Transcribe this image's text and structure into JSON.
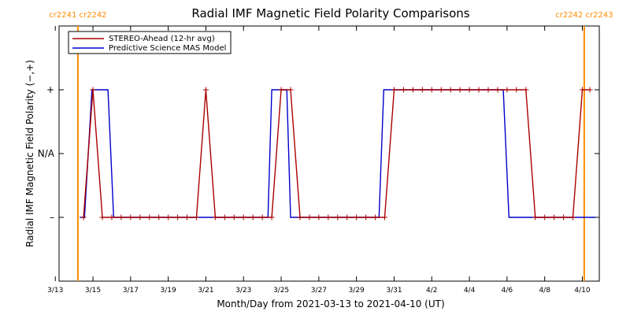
{
  "chart_data": {
    "type": "line",
    "title": "Radial IMF Magnetic Field Polarity Comparisons",
    "xlabel": "Month/Day from 2021-03-13 to 2021-04-10 (UT)",
    "ylabel": "Radial IMF Magnetic Field Polarity (−,+)",
    "x_range_days": [
      0,
      28.7
    ],
    "y_levels": [
      {
        "label": "+",
        "value": 1
      },
      {
        "label": "N/A",
        "value": 0
      },
      {
        "label": "–",
        "value": -1
      }
    ],
    "ylim": [
      -2,
      2
    ],
    "x_ticks": [
      {
        "label": "3/13",
        "day": 0
      },
      {
        "label": "3/15",
        "day": 2
      },
      {
        "label": "3/17",
        "day": 4
      },
      {
        "label": "3/19",
        "day": 6
      },
      {
        "label": "3/21",
        "day": 8
      },
      {
        "label": "3/23",
        "day": 10
      },
      {
        "label": "3/25",
        "day": 12
      },
      {
        "label": "3/27",
        "day": 14
      },
      {
        "label": "3/29",
        "day": 16
      },
      {
        "label": "3/31",
        "day": 18
      },
      {
        "label": "4/2",
        "day": 20
      },
      {
        "label": "4/4",
        "day": 22
      },
      {
        "label": "4/6",
        "day": 24
      },
      {
        "label": "4/8",
        "day": 26
      },
      {
        "label": "4/10",
        "day": 28
      }
    ],
    "carrington": [
      {
        "label": "cr2241 cr2242",
        "day": 1.2
      },
      {
        "label": "cr2242 cr2243",
        "day": 28.1
      }
    ],
    "legend": {
      "placement": "top-left",
      "entries": [
        {
          "name": "STEREO-Ahead (12-hr avg)",
          "color": "#aa0000"
        },
        {
          "name": "Predictive Science MAS Model",
          "color": "#0000cc"
        }
      ]
    },
    "series": [
      {
        "name": "STEREO-Ahead (12-hr avg)",
        "color": "#aa0000",
        "markers": true,
        "points": [
          [
            1.5,
            -1
          ],
          [
            2.0,
            1
          ],
          [
            2.5,
            -1
          ],
          [
            3.0,
            -1
          ],
          [
            3.5,
            -1
          ],
          [
            4.0,
            -1
          ],
          [
            4.5,
            -1
          ],
          [
            5.0,
            -1
          ],
          [
            5.5,
            -1
          ],
          [
            6.0,
            -1
          ],
          [
            6.5,
            -1
          ],
          [
            7.0,
            -1
          ],
          [
            7.5,
            -1
          ],
          [
            8.0,
            1
          ],
          [
            8.5,
            -1
          ],
          [
            9.0,
            -1
          ],
          [
            9.5,
            -1
          ],
          [
            10.0,
            -1
          ],
          [
            10.5,
            -1
          ],
          [
            11.0,
            -1
          ],
          [
            11.5,
            -1
          ],
          [
            12.0,
            1
          ],
          [
            12.5,
            1
          ],
          [
            13.0,
            -1
          ],
          [
            13.5,
            -1
          ],
          [
            14.0,
            -1
          ],
          [
            14.5,
            -1
          ],
          [
            15.0,
            -1
          ],
          [
            15.5,
            -1
          ],
          [
            16.0,
            -1
          ],
          [
            16.5,
            -1
          ],
          [
            17.0,
            -1
          ],
          [
            17.5,
            -1
          ],
          [
            18.0,
            1
          ],
          [
            18.5,
            1
          ],
          [
            19.0,
            1
          ],
          [
            19.5,
            1
          ],
          [
            20.0,
            1
          ],
          [
            20.5,
            1
          ],
          [
            21.0,
            1
          ],
          [
            21.5,
            1
          ],
          [
            22.0,
            1
          ],
          [
            22.5,
            1
          ],
          [
            23.0,
            1
          ],
          [
            23.5,
            1
          ],
          [
            24.0,
            1
          ],
          [
            24.5,
            1
          ],
          [
            25.0,
            1
          ],
          [
            25.5,
            -1
          ],
          [
            26.0,
            -1
          ],
          [
            26.5,
            -1
          ],
          [
            27.0,
            -1
          ],
          [
            27.5,
            -1
          ],
          [
            28.0,
            1
          ],
          [
            28.4,
            1
          ]
        ]
      },
      {
        "name": "Predictive Science MAS Model",
        "color": "#0000cc",
        "markers": false,
        "points": [
          [
            1.3,
            -1
          ],
          [
            1.55,
            -1
          ],
          [
            1.95,
            1
          ],
          [
            2.8,
            1
          ],
          [
            3.1,
            -1
          ],
          [
            11.3,
            -1
          ],
          [
            11.5,
            1
          ],
          [
            12.3,
            1
          ],
          [
            12.5,
            -1
          ],
          [
            17.2,
            -1
          ],
          [
            17.45,
            1
          ],
          [
            23.8,
            1
          ],
          [
            24.1,
            -1
          ],
          [
            28.7,
            -1
          ]
        ]
      }
    ]
  }
}
